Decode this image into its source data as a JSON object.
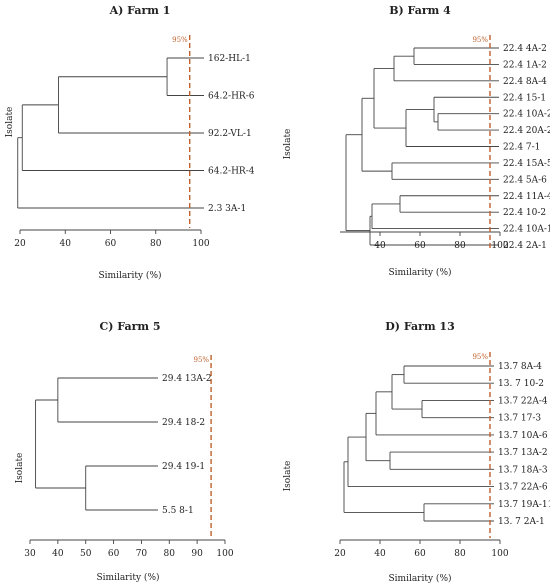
{
  "cutoff": {
    "label": "95%",
    "value": 95,
    "color": "#c0602a"
  },
  "chart_data": [
    {
      "type": "dendrogram",
      "title": "A) Farm 1",
      "xlabel": "Similarity (%)",
      "ylabel": "Isolate",
      "xlim": [
        20,
        100
      ],
      "xticks": [
        20,
        40,
        60,
        80,
        100
      ],
      "leaves": [
        "162-HL-1",
        "64.2-HR-6",
        "92.2-VL-1",
        "64.2-HR-4",
        "2.3 3A-1"
      ],
      "merges": [
        {
          "a": "L0",
          "b": "L1",
          "sim": 85
        },
        {
          "a": "N0",
          "b": "L2",
          "sim": 37
        },
        {
          "a": "N1",
          "b": "L3",
          "sim": 21
        },
        {
          "a": "N2",
          "b": "L4",
          "sim": 19
        }
      ]
    },
    {
      "type": "dendrogram",
      "title": "B) Farm 4",
      "xlabel": "Similarity (%)",
      "ylabel": "Isolate",
      "xlim": [
        20,
        100
      ],
      "xticks": [
        40,
        60,
        80,
        100
      ],
      "leaves": [
        "22.4 4A-2",
        "22.4 1A-2",
        "22.4 8A-4",
        "22.4 15-1",
        "22.4 10A-2",
        "22.4 20A-2",
        "22.4 7-1",
        "22.4 15A-5",
        "22.4 5A-6",
        "22.4 11A-4",
        "22.4 10-2",
        "22.4 10A-1",
        "22.4 2A-1"
      ],
      "merges": [
        {
          "a": "L0",
          "b": "L1",
          "sim": 57
        },
        {
          "a": "N0",
          "b": "L2",
          "sim": 47
        },
        {
          "a": "L4",
          "b": "L5",
          "sim": 69
        },
        {
          "a": "L3",
          "b": "N2",
          "sim": 67
        },
        {
          "a": "N3",
          "b": "L6",
          "sim": 53
        },
        {
          "a": "N1",
          "b": "N4",
          "sim": 37
        },
        {
          "a": "L7",
          "b": "L8",
          "sim": 46
        },
        {
          "a": "N5",
          "b": "N6",
          "sim": 31
        },
        {
          "a": "L9",
          "b": "L10",
          "sim": 50
        },
        {
          "a": "N8",
          "b": "L11",
          "sim": 36
        },
        {
          "a": "N9",
          "b": "L12",
          "sim": 35
        },
        {
          "a": "N7",
          "b": "N10",
          "sim": 23
        }
      ]
    },
    {
      "type": "dendrogram",
      "title": "C) Farm 5",
      "xlabel": "Similarity (%)",
      "ylabel": "Isolate",
      "xlim": [
        30,
        100
      ],
      "xticks": [
        30,
        40,
        50,
        60,
        70,
        80,
        90,
        100
      ],
      "leaves": [
        "29.4 13A-2",
        "29.4 18-2",
        "29.4 19-1",
        "5.5 8-1"
      ],
      "merges": [
        {
          "a": "L0",
          "b": "L1",
          "sim": 40
        },
        {
          "a": "L2",
          "b": "L3",
          "sim": 50
        },
        {
          "a": "N0",
          "b": "N1",
          "sim": 32
        }
      ]
    },
    {
      "type": "dendrogram",
      "title": "D) Farm 13",
      "xlabel": "Similarity (%)",
      "ylabel": "Isolate",
      "xlim": [
        20,
        100
      ],
      "xticks": [
        20,
        40,
        60,
        80,
        100
      ],
      "leaves": [
        "13.7 8A-4",
        "13. 7 10-2",
        "13.7 22A-4",
        "13.7 17-3",
        "13.7 10A-6",
        "13.7 13A-2",
        "13.7 18A-3",
        "13.7 22A-6",
        "13.7 19A-11",
        "13. 7 2A-1"
      ],
      "merges": [
        {
          "a": "L0",
          "b": "L1",
          "sim": 52
        },
        {
          "a": "L2",
          "b": "L3",
          "sim": 61
        },
        {
          "a": "N0",
          "b": "N1",
          "sim": 46
        },
        {
          "a": "N2",
          "b": "L4",
          "sim": 38
        },
        {
          "a": "L5",
          "b": "L6",
          "sim": 45
        },
        {
          "a": "N3",
          "b": "N4",
          "sim": 33
        },
        {
          "a": "N5",
          "b": "L7",
          "sim": 24
        },
        {
          "a": "L8",
          "b": "L9",
          "sim": 62
        },
        {
          "a": "N6",
          "b": "N7",
          "sim": 22
        }
      ]
    }
  ]
}
